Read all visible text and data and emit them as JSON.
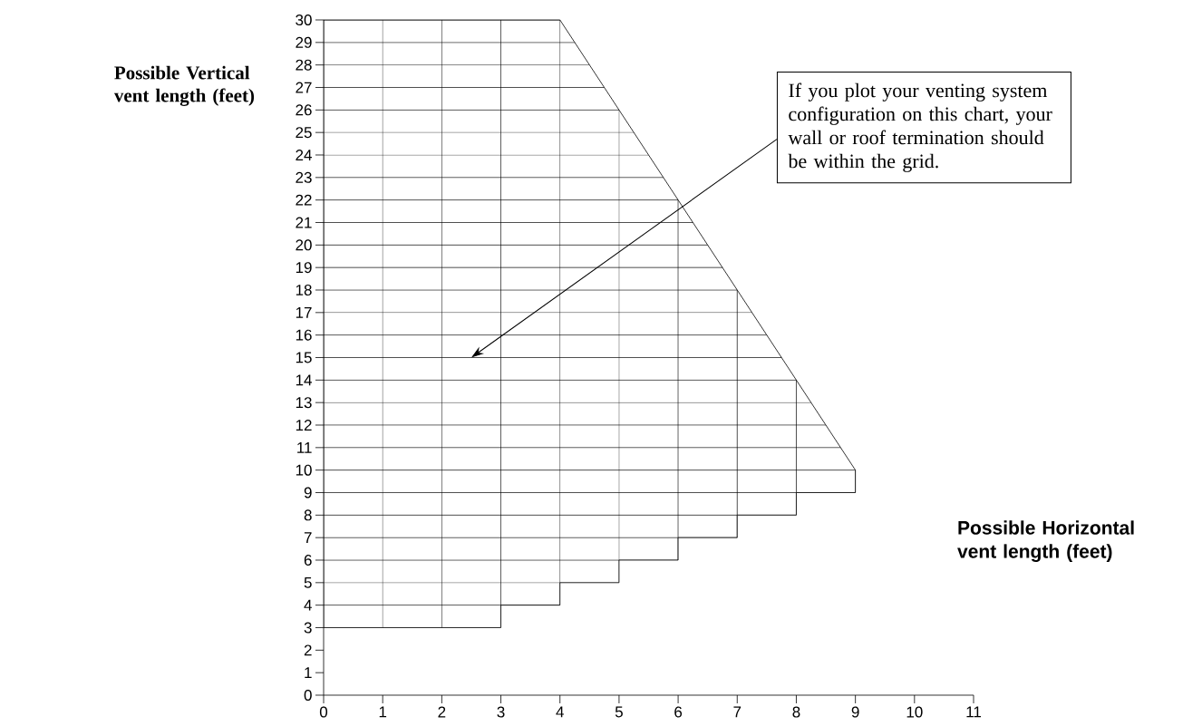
{
  "chart_data": {
    "type": "line",
    "ylabel": "Possible Vertical vent length (feet)",
    "xlabel": "Possible Horizontal vent length (feet)",
    "series": [
      {
        "color": "#000000",
        "x": [
          0,
          4,
          9
        ],
        "values": [
          30,
          30,
          10
        ]
      },
      {
        "type": "step",
        "color": "#000000",
        "x": [
          0,
          3,
          4,
          5,
          6,
          7,
          8,
          9
        ],
        "values": [
          3,
          4,
          5,
          6,
          7,
          8,
          9,
          10
        ]
      }
    ],
    "xlim": [
      0,
      11
    ],
    "ylim": [
      0,
      30
    ],
    "xticks": [
      0,
      1,
      2,
      3,
      4,
      5,
      6,
      7,
      8,
      9,
      10,
      11
    ],
    "yticks": [
      0,
      1,
      2,
      3,
      4,
      5,
      6,
      7,
      8,
      9,
      10,
      11,
      12,
      13,
      14,
      15,
      16,
      17,
      18,
      19,
      20,
      21,
      22,
      23,
      24,
      25,
      26,
      27,
      28,
      29,
      30
    ],
    "grid": true,
    "annotations": [
      "If you plot your venting system configuration on this chart, your wall or roof termination should be within the grid."
    ]
  }
}
